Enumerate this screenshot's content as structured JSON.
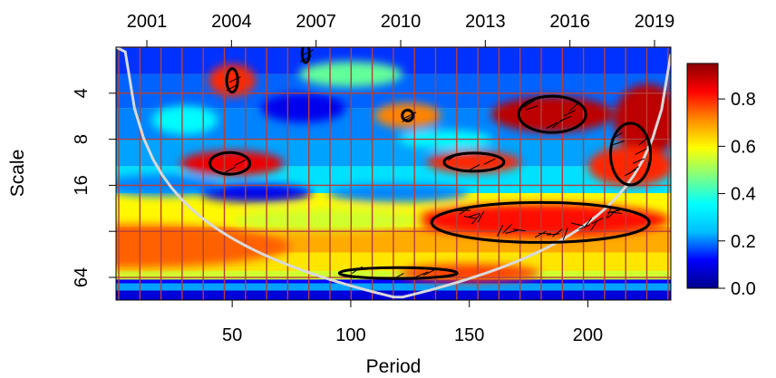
{
  "chart_data": {
    "type": "heatmap",
    "title": "",
    "xlabel": "Period",
    "ylabel": "Scale",
    "x_ticks": [
      50,
      100,
      150,
      200
    ],
    "x_range": [
      1,
      235
    ],
    "top_axis_ticks": [
      "2001",
      "2004",
      "2007",
      "2010",
      "2013",
      "2016",
      "2019"
    ],
    "y_scale": "log2",
    "y_ticks": [
      4,
      8,
      16,
      64
    ],
    "y_range": [
      2,
      90
    ],
    "colorbar": {
      "ticks": [
        "0.0",
        "0.2",
        "0.4",
        "0.6",
        "0.8"
      ],
      "range": [
        0,
        0.95
      ],
      "colors": [
        "#00008b",
        "#0000ff",
        "#00bfff",
        "#00ffff",
        "#7fff7f",
        "#ffff00",
        "#ff8c00",
        "#ff0000",
        "#8b0000"
      ]
    },
    "grid": true,
    "grid_color": "#b5403a",
    "cone_of_influence": true,
    "significance_contours": [
      {
        "period_center": 49,
        "scale_center": 11.5,
        "label": "region 2004 scale 11"
      },
      {
        "period_center": 50,
        "scale_center": 3.3,
        "label": "region 2004 scale 3"
      },
      {
        "period_center": 81,
        "scale_center": 2.2,
        "label": "region 2007 scale 2"
      },
      {
        "period_center": 124,
        "scale_center": 5.6,
        "label": "region 2010 scale 5"
      },
      {
        "period_center": 152,
        "scale_center": 11.3,
        "label": "region 2013 scale 11"
      },
      {
        "period_center": 185,
        "scale_center": 5.5,
        "label": "region 2016 scale 5"
      },
      {
        "period_center": 180,
        "scale_center": 28,
        "label": "band 2010-2019 scale 20-40"
      },
      {
        "period_center": 218,
        "scale_center": 10,
        "label": "region 2018 scale 8-16"
      },
      {
        "period_center": 120,
        "scale_center": 60,
        "label": "band 2008-2013 scale 60"
      }
    ]
  }
}
